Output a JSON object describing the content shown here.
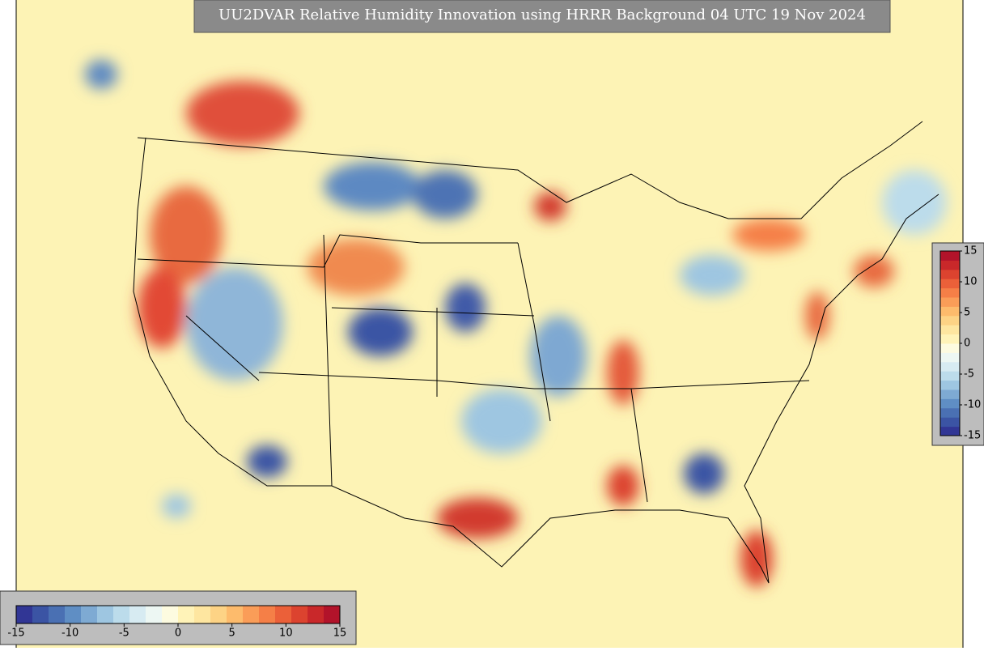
{
  "title": "UU2DVAR Relative Humidity Innovation using HRRR Background 04 UTC 19 Nov 2024",
  "colorbar_bottom": {
    "range": [
      -15,
      15
    ],
    "ticks": [
      -15,
      -10,
      -5,
      0,
      5,
      10,
      15
    ]
  },
  "colorbar_right": {
    "range": [
      -15,
      15
    ],
    "ticks": [
      15,
      10,
      5,
      0,
      -5,
      -10,
      -15
    ]
  },
  "colors": [
    "#313695",
    "#3b54a4",
    "#4a70b3",
    "#5f8ec4",
    "#7eaad3",
    "#9ec6e1",
    "#bcdceb",
    "#d7ebf2",
    "#edf7f3",
    "#fdfbe0",
    "#fff3b8",
    "#fee6a0",
    "#fdd385",
    "#fdbb6c",
    "#fa9d58",
    "#f57f47",
    "#eb6039",
    "#dc432f",
    "#c9282a",
    "#b2132a"
  ]
}
